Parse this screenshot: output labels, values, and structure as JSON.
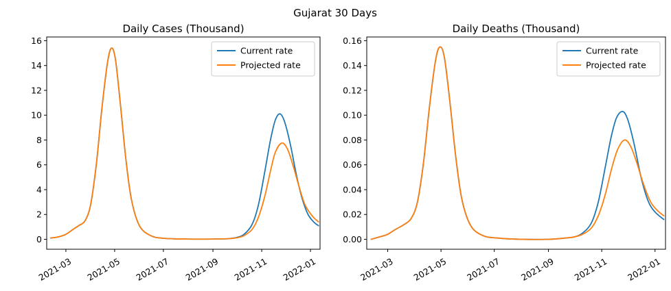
{
  "suptitle": "Gujarat 30 Days",
  "colors": {
    "current": "#1f77b4",
    "projected": "#ff7f0e"
  },
  "chart_data": [
    {
      "type": "line",
      "title": "Daily Cases (Thousand)",
      "xlabel": "",
      "ylabel": "",
      "x_start": "2021-02-05",
      "x_end": "2022-01-13",
      "ylim": [
        -0.8,
        16.3
      ],
      "yticks": [
        0,
        2,
        4,
        6,
        8,
        10,
        12,
        14,
        16
      ],
      "ytick_labels": [
        "0",
        "2",
        "4",
        "6",
        "8",
        "10",
        "12",
        "14",
        "16"
      ],
      "xticks": [
        "2021-03-01",
        "2021-05-01",
        "2021-07-01",
        "2021-09-01",
        "2021-11-01",
        "2022-01-01"
      ],
      "xtick_labels": [
        "2021-03",
        "2021-05",
        "2021-07",
        "2021-09",
        "2021-11",
        "2022-01"
      ],
      "legend_position": "top-right",
      "series": [
        {
          "name": "Current rate",
          "color": "#1f77b4",
          "points": [
            [
              "2021-02-10",
              0.1
            ],
            [
              "2021-02-20",
              0.2
            ],
            [
              "2021-03-01",
              0.4
            ],
            [
              "2021-03-10",
              0.8
            ],
            [
              "2021-03-17",
              1.1
            ],
            [
              "2021-03-25",
              1.5
            ],
            [
              "2021-04-01",
              2.8
            ],
            [
              "2021-04-08",
              6.0
            ],
            [
              "2021-04-15",
              10.5
            ],
            [
              "2021-04-22",
              14.2
            ],
            [
              "2021-04-27",
              15.4
            ],
            [
              "2021-05-02",
              14.5
            ],
            [
              "2021-05-08",
              11.0
            ],
            [
              "2021-05-15",
              6.5
            ],
            [
              "2021-05-22",
              3.2
            ],
            [
              "2021-06-01",
              1.1
            ],
            [
              "2021-06-15",
              0.3
            ],
            [
              "2021-07-01",
              0.08
            ],
            [
              "2021-08-01",
              0.02
            ],
            [
              "2021-09-01",
              0.02
            ],
            [
              "2021-09-20",
              0.05
            ],
            [
              "2021-10-01",
              0.15
            ],
            [
              "2021-10-10",
              0.4
            ],
            [
              "2021-10-20",
              1.2
            ],
            [
              "2021-10-28",
              2.8
            ],
            [
              "2021-11-05",
              5.5
            ],
            [
              "2021-11-12",
              8.0
            ],
            [
              "2021-11-18",
              9.6
            ],
            [
              "2021-11-24",
              10.1
            ],
            [
              "2021-11-30",
              9.4
            ],
            [
              "2021-12-07",
              7.6
            ],
            [
              "2021-12-15",
              5.0
            ],
            [
              "2021-12-22",
              3.2
            ],
            [
              "2021-12-29",
              2.0
            ],
            [
              "2022-01-05",
              1.4
            ],
            [
              "2022-01-11",
              1.1
            ]
          ]
        },
        {
          "name": "Projected rate",
          "color": "#ff7f0e",
          "points": [
            [
              "2021-02-10",
              0.1
            ],
            [
              "2021-02-20",
              0.2
            ],
            [
              "2021-03-01",
              0.4
            ],
            [
              "2021-03-10",
              0.8
            ],
            [
              "2021-03-17",
              1.1
            ],
            [
              "2021-03-25",
              1.5
            ],
            [
              "2021-04-01",
              2.8
            ],
            [
              "2021-04-08",
              6.0
            ],
            [
              "2021-04-15",
              10.5
            ],
            [
              "2021-04-22",
              14.2
            ],
            [
              "2021-04-27",
              15.4
            ],
            [
              "2021-05-02",
              14.5
            ],
            [
              "2021-05-08",
              11.0
            ],
            [
              "2021-05-15",
              6.5
            ],
            [
              "2021-05-22",
              3.2
            ],
            [
              "2021-06-01",
              1.1
            ],
            [
              "2021-06-15",
              0.3
            ],
            [
              "2021-07-01",
              0.08
            ],
            [
              "2021-08-01",
              0.02
            ],
            [
              "2021-09-01",
              0.02
            ],
            [
              "2021-09-20",
              0.05
            ],
            [
              "2021-10-01",
              0.12
            ],
            [
              "2021-10-10",
              0.3
            ],
            [
              "2021-10-20",
              0.8
            ],
            [
              "2021-10-28",
              1.8
            ],
            [
              "2021-11-05",
              3.5
            ],
            [
              "2021-11-12",
              5.5
            ],
            [
              "2021-11-18",
              7.0
            ],
            [
              "2021-11-26",
              7.75
            ],
            [
              "2021-12-03",
              7.3
            ],
            [
              "2021-12-10",
              6.0
            ],
            [
              "2021-12-18",
              4.2
            ],
            [
              "2021-12-25",
              2.8
            ],
            [
              "2022-01-03",
              1.9
            ],
            [
              "2022-01-11",
              1.4
            ]
          ]
        }
      ]
    },
    {
      "type": "line",
      "title": "Daily Deaths (Thousand)",
      "xlabel": "",
      "ylabel": "",
      "x_start": "2021-02-05",
      "x_end": "2022-01-13",
      "ylim": [
        -0.008,
        0.163
      ],
      "yticks": [
        0,
        0.02,
        0.04,
        0.06,
        0.08,
        0.1,
        0.12,
        0.14,
        0.16
      ],
      "ytick_labels": [
        "0.00",
        "0.02",
        "0.04",
        "0.06",
        "0.08",
        "0.10",
        "0.12",
        "0.14",
        "0.16"
      ],
      "xticks": [
        "2021-03-01",
        "2021-05-01",
        "2021-07-01",
        "2021-09-01",
        "2021-11-01",
        "2022-01-01"
      ],
      "xtick_labels": [
        "2021-03",
        "2021-05",
        "2021-07",
        "2021-09",
        "2021-11",
        "2022-01"
      ],
      "legend_position": "top-right",
      "series": [
        {
          "name": "Current rate",
          "color": "#1f77b4",
          "points": [
            [
              "2021-02-10",
              0.0
            ],
            [
              "2021-02-20",
              0.002
            ],
            [
              "2021-03-01",
              0.004
            ],
            [
              "2021-03-10",
              0.008
            ],
            [
              "2021-03-20",
              0.012
            ],
            [
              "2021-03-28",
              0.017
            ],
            [
              "2021-04-04",
              0.03
            ],
            [
              "2021-04-11",
              0.062
            ],
            [
              "2021-04-18",
              0.108
            ],
            [
              "2021-04-25",
              0.145
            ],
            [
              "2021-04-30",
              0.155
            ],
            [
              "2021-05-05",
              0.146
            ],
            [
              "2021-05-11",
              0.112
            ],
            [
              "2021-05-18",
              0.066
            ],
            [
              "2021-05-25",
              0.032
            ],
            [
              "2021-06-04",
              0.011
            ],
            [
              "2021-06-18",
              0.003
            ],
            [
              "2021-07-05",
              0.001
            ],
            [
              "2021-08-01",
              0.0
            ],
            [
              "2021-09-01",
              0.0
            ],
            [
              "2021-09-20",
              0.001
            ],
            [
              "2021-10-01",
              0.002
            ],
            [
              "2021-10-10",
              0.005
            ],
            [
              "2021-10-20",
              0.013
            ],
            [
              "2021-10-28",
              0.03
            ],
            [
              "2021-11-05",
              0.058
            ],
            [
              "2021-11-12",
              0.083
            ],
            [
              "2021-11-18",
              0.098
            ],
            [
              "2021-11-25",
              0.103
            ],
            [
              "2021-12-01",
              0.096
            ],
            [
              "2021-12-08",
              0.077
            ],
            [
              "2021-12-16",
              0.05
            ],
            [
              "2021-12-24",
              0.031
            ],
            [
              "2022-01-01",
              0.022
            ],
            [
              "2022-01-11",
              0.016
            ]
          ]
        },
        {
          "name": "Projected rate",
          "color": "#ff7f0e",
          "points": [
            [
              "2021-02-10",
              0.0
            ],
            [
              "2021-02-20",
              0.002
            ],
            [
              "2021-03-01",
              0.004
            ],
            [
              "2021-03-10",
              0.008
            ],
            [
              "2021-03-20",
              0.012
            ],
            [
              "2021-03-28",
              0.017
            ],
            [
              "2021-04-04",
              0.03
            ],
            [
              "2021-04-11",
              0.062
            ],
            [
              "2021-04-18",
              0.108
            ],
            [
              "2021-04-25",
              0.145
            ],
            [
              "2021-04-30",
              0.155
            ],
            [
              "2021-05-05",
              0.146
            ],
            [
              "2021-05-11",
              0.112
            ],
            [
              "2021-05-18",
              0.066
            ],
            [
              "2021-05-25",
              0.032
            ],
            [
              "2021-06-04",
              0.011
            ],
            [
              "2021-06-18",
              0.003
            ],
            [
              "2021-07-05",
              0.001
            ],
            [
              "2021-08-01",
              0.0
            ],
            [
              "2021-09-01",
              0.0
            ],
            [
              "2021-09-20",
              0.001
            ],
            [
              "2021-10-01",
              0.002
            ],
            [
              "2021-10-10",
              0.004
            ],
            [
              "2021-10-20",
              0.009
            ],
            [
              "2021-10-28",
              0.019
            ],
            [
              "2021-11-05",
              0.036
            ],
            [
              "2021-11-12",
              0.056
            ],
            [
              "2021-11-19",
              0.072
            ],
            [
              "2021-11-27",
              0.08
            ],
            [
              "2021-12-04",
              0.075
            ],
            [
              "2021-12-11",
              0.062
            ],
            [
              "2021-12-19",
              0.044
            ],
            [
              "2021-12-27",
              0.03
            ],
            [
              "2022-01-04",
              0.023
            ],
            [
              "2022-01-11",
              0.019
            ]
          ]
        }
      ]
    }
  ]
}
